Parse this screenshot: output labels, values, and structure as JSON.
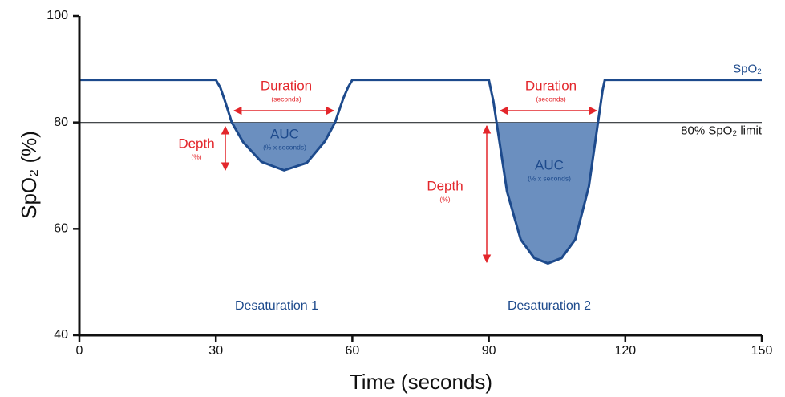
{
  "chart_data": {
    "type": "line",
    "x": [
      0,
      30,
      31,
      32,
      33.5,
      36,
      40,
      45,
      50,
      54,
      56.2,
      58,
      59,
      60,
      90,
      91,
      91.7,
      94,
      97,
      100,
      103,
      106,
      109,
      112,
      114,
      115,
      115.5,
      150
    ],
    "series": [
      {
        "name": "SpO₂",
        "color": "#1d4a8c",
        "values": [
          88,
          88,
          86.5,
          84,
          80,
          76.3,
          72.6,
          71,
          72.4,
          76.5,
          80,
          84.5,
          86.5,
          88,
          88,
          84,
          80,
          67,
          58,
          54.5,
          53.5,
          54.5,
          58,
          68,
          80,
          86,
          88,
          88
        ]
      }
    ],
    "fill_color": "#6b8fbf",
    "threshold": 80,
    "threshold_label": "80% SpO₂ limit",
    "xlim": [
      0,
      150
    ],
    "xticks": [
      0,
      30,
      60,
      90,
      120,
      150
    ],
    "ylim": [
      40,
      100
    ],
    "yticks": [
      40,
      60,
      80,
      100
    ],
    "xlabel": "Time (seconds)",
    "ylabel": "SpO₂ (%)",
    "annotations": [
      {
        "text": "Duration",
        "subtext": "(seconds)"
      },
      {
        "text": "Depth",
        "subtext": "(%)"
      },
      {
        "text": "AUC",
        "subtext": "(% x seconds)"
      },
      {
        "text": "Duration",
        "subtext": "(seconds)"
      },
      {
        "text": "Depth",
        "subtext": "(%)"
      },
      {
        "text": "AUC",
        "subtext": "(% x seconds)"
      }
    ],
    "event_labels": [
      "Desaturation 1",
      "Desaturation 2"
    ]
  }
}
